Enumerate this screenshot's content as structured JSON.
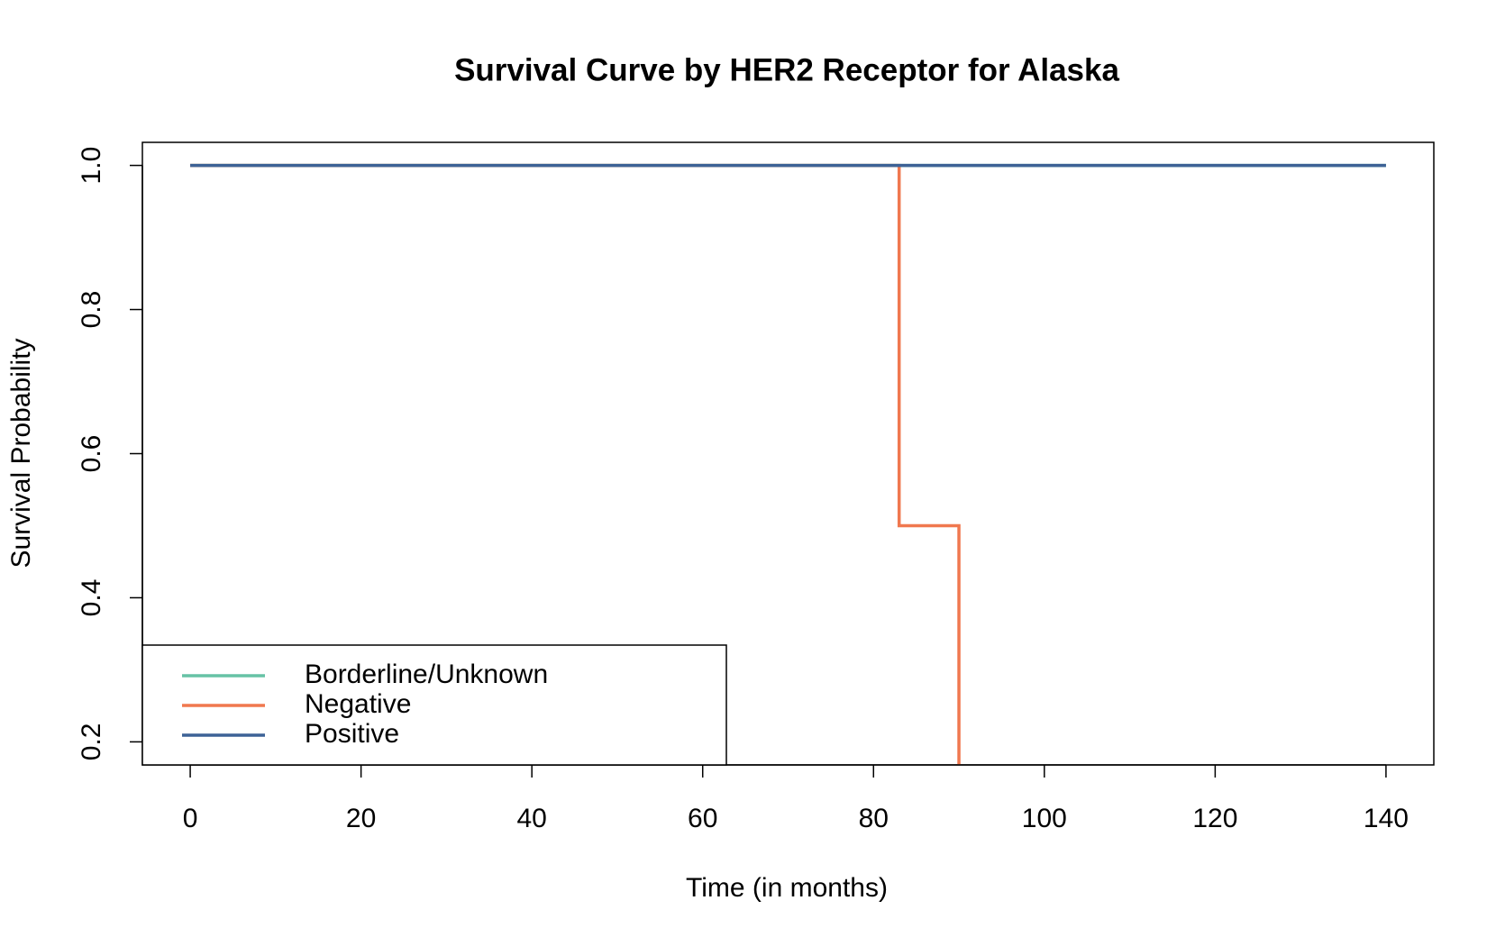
{
  "chart_data": {
    "type": "step",
    "title": "Survival Curve by HER2 Receptor for Alaska",
    "xlabel": "Time (in months)",
    "ylabel": "Survival Probability",
    "xlim": [
      -5.6,
      145.6
    ],
    "ylim": [
      0.168,
      1.032
    ],
    "xticks": [
      0,
      20,
      40,
      60,
      80,
      100,
      120,
      140
    ],
    "yticks": [
      {
        "value": 0.2,
        "label": "0.2"
      },
      {
        "value": 0.4,
        "label": "0.4"
      },
      {
        "value": 0.6,
        "label": "0.6"
      },
      {
        "value": 0.8,
        "label": "0.8"
      },
      {
        "value": 1.0,
        "label": "1.0"
      }
    ],
    "legend": "bottomleft",
    "series": [
      {
        "name": "Borderline/Unknown",
        "color": "#66c2a5",
        "x": [
          0,
          140
        ],
        "values": [
          1,
          1
        ]
      },
      {
        "name": "Negative",
        "color": "#f0784f",
        "x": [
          0,
          83,
          90
        ],
        "values": [
          1,
          0.5,
          0
        ]
      },
      {
        "name": "Positive",
        "color": "#3d6296",
        "x": [
          0,
          140
        ],
        "values": [
          1,
          1
        ]
      }
    ]
  }
}
